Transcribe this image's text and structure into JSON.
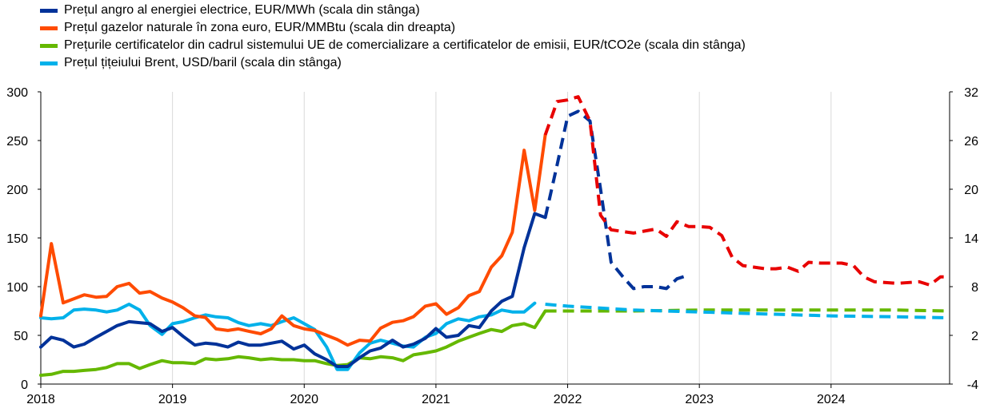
{
  "chart_data": {
    "type": "line",
    "x_axis": {
      "min": 2018.0,
      "max": 2024.9,
      "tick_labels": [
        "2018",
        "2019",
        "2020",
        "2021",
        "2022",
        "2023",
        "2024"
      ],
      "tick_values": [
        2018,
        2019,
        2020,
        2021,
        2022,
        2023,
        2024
      ]
    },
    "y_left": {
      "min": 0,
      "max": 300,
      "tick_labels": [
        "0",
        "50",
        "100",
        "150",
        "200",
        "250",
        "300"
      ],
      "tick_values": [
        0,
        50,
        100,
        150,
        200,
        250,
        300
      ]
    },
    "y_right": {
      "min": -4,
      "max": 32,
      "tick_labels": [
        "-4",
        "2",
        "8",
        "14",
        "20",
        "26",
        "32"
      ],
      "tick_values": [
        -4,
        2,
        8,
        14,
        20,
        26,
        32
      ]
    },
    "grid": "vertical",
    "legend_position": "top-left",
    "series": [
      {
        "name": "Prețul angro al energiei electrice, EUR/MWh (scala din stânga)",
        "color": "#003299",
        "axis": "left",
        "points": [
          [
            2018.0,
            38
          ],
          [
            2018.08,
            48
          ],
          [
            2018.17,
            45
          ],
          [
            2018.25,
            38
          ],
          [
            2018.33,
            41
          ],
          [
            2018.42,
            48
          ],
          [
            2018.5,
            54
          ],
          [
            2018.58,
            60
          ],
          [
            2018.67,
            64
          ],
          [
            2018.75,
            63
          ],
          [
            2018.83,
            62
          ],
          [
            2018.92,
            54
          ],
          [
            2019.0,
            58
          ],
          [
            2019.08,
            49
          ],
          [
            2019.17,
            40
          ],
          [
            2019.25,
            42
          ],
          [
            2019.33,
            41
          ],
          [
            2019.42,
            38
          ],
          [
            2019.5,
            43
          ],
          [
            2019.58,
            40
          ],
          [
            2019.67,
            40
          ],
          [
            2019.75,
            42
          ],
          [
            2019.83,
            44
          ],
          [
            2019.92,
            36
          ],
          [
            2020.0,
            40
          ],
          [
            2020.08,
            31
          ],
          [
            2020.17,
            25
          ],
          [
            2020.25,
            18
          ],
          [
            2020.33,
            18
          ],
          [
            2020.42,
            27
          ],
          [
            2020.5,
            34
          ],
          [
            2020.58,
            37
          ],
          [
            2020.67,
            45
          ],
          [
            2020.75,
            38
          ],
          [
            2020.83,
            41
          ],
          [
            2020.92,
            47
          ],
          [
            2021.0,
            57
          ],
          [
            2021.08,
            48
          ],
          [
            2021.17,
            50
          ],
          [
            2021.25,
            60
          ],
          [
            2021.33,
            58
          ],
          [
            2021.42,
            75
          ],
          [
            2021.5,
            85
          ],
          [
            2021.58,
            90
          ],
          [
            2021.67,
            140
          ],
          [
            2021.75,
            175
          ],
          [
            2021.83,
            171
          ]
        ],
        "forecast_points": [
          [
            2021.83,
            171
          ],
          [
            2021.92,
            225
          ],
          [
            2022.0,
            275
          ],
          [
            2022.08,
            280
          ],
          [
            2022.17,
            270
          ],
          [
            2022.25,
            200
          ],
          [
            2022.33,
            125
          ],
          [
            2022.42,
            110
          ],
          [
            2022.5,
            98
          ],
          [
            2022.58,
            100
          ],
          [
            2022.67,
            100
          ],
          [
            2022.75,
            98
          ],
          [
            2022.83,
            108
          ],
          [
            2022.92,
            112
          ]
        ]
      },
      {
        "name": "Prețul gazelor naturale în zona euro, EUR/MMBtu (scala din dreapta)",
        "color": "#ff4b00",
        "forecast_color": "#e80000",
        "axis": "right",
        "points": [
          [
            2018.0,
            4.4
          ],
          [
            2018.08,
            13.3
          ],
          [
            2018.17,
            6.0
          ],
          [
            2018.25,
            6.5
          ],
          [
            2018.33,
            7.0
          ],
          [
            2018.42,
            6.7
          ],
          [
            2018.5,
            6.8
          ],
          [
            2018.58,
            8.0
          ],
          [
            2018.67,
            8.4
          ],
          [
            2018.75,
            7.2
          ],
          [
            2018.83,
            7.4
          ],
          [
            2018.92,
            6.6
          ],
          [
            2019.0,
            6.1
          ],
          [
            2019.08,
            5.4
          ],
          [
            2019.17,
            4.4
          ],
          [
            2019.25,
            4.2
          ],
          [
            2019.33,
            2.8
          ],
          [
            2019.42,
            2.6
          ],
          [
            2019.5,
            2.8
          ],
          [
            2019.58,
            2.5
          ],
          [
            2019.67,
            2.2
          ],
          [
            2019.75,
            2.8
          ],
          [
            2019.83,
            4.4
          ],
          [
            2019.92,
            3.2
          ],
          [
            2020.0,
            2.8
          ],
          [
            2020.08,
            2.6
          ],
          [
            2020.17,
            2.0
          ],
          [
            2020.25,
            1.5
          ],
          [
            2020.33,
            0.8
          ],
          [
            2020.42,
            1.4
          ],
          [
            2020.5,
            1.3
          ],
          [
            2020.58,
            2.9
          ],
          [
            2020.67,
            3.6
          ],
          [
            2020.75,
            3.8
          ],
          [
            2020.83,
            4.3
          ],
          [
            2020.92,
            5.6
          ],
          [
            2021.0,
            5.9
          ],
          [
            2021.08,
            4.6
          ],
          [
            2021.17,
            5.4
          ],
          [
            2021.25,
            6.9
          ],
          [
            2021.33,
            7.4
          ],
          [
            2021.42,
            10.4
          ],
          [
            2021.5,
            11.8
          ],
          [
            2021.58,
            14.7
          ],
          [
            2021.67,
            24.8
          ],
          [
            2021.75,
            17.4
          ],
          [
            2021.83,
            26.7
          ]
        ],
        "forecast_points": [
          [
            2021.83,
            26.7
          ],
          [
            2021.92,
            30.8
          ],
          [
            2022.0,
            31.0
          ],
          [
            2022.08,
            31.4
          ],
          [
            2022.17,
            28.4
          ],
          [
            2022.25,
            16.8
          ],
          [
            2022.33,
            15.0
          ],
          [
            2022.5,
            14.6
          ],
          [
            2022.67,
            15.1
          ],
          [
            2022.75,
            14.2
          ],
          [
            2022.83,
            16.0
          ],
          [
            2022.92,
            15.4
          ],
          [
            2023.0,
            15.4
          ],
          [
            2023.08,
            15.3
          ],
          [
            2023.17,
            14.3
          ],
          [
            2023.25,
            11.6
          ],
          [
            2023.33,
            10.6
          ],
          [
            2023.5,
            10.2
          ],
          [
            2023.58,
            10.2
          ],
          [
            2023.67,
            10.4
          ],
          [
            2023.75,
            9.9
          ],
          [
            2023.83,
            11.0
          ],
          [
            2023.92,
            10.9
          ],
          [
            2024.0,
            10.9
          ],
          [
            2024.08,
            10.9
          ],
          [
            2024.17,
            10.6
          ],
          [
            2024.25,
            9.2
          ],
          [
            2024.33,
            8.6
          ],
          [
            2024.5,
            8.4
          ],
          [
            2024.67,
            8.6
          ],
          [
            2024.75,
            8.2
          ],
          [
            2024.83,
            9.2
          ],
          [
            2024.9,
            9.2
          ]
        ]
      },
      {
        "name": "Prețurile certificatelor din cadrul sistemului UE de comercializare a certificatelor de emisii, EUR/tCO2e (scala din stânga)",
        "color": "#65b800",
        "axis": "left",
        "points": [
          [
            2018.0,
            9
          ],
          [
            2018.08,
            10
          ],
          [
            2018.17,
            13
          ],
          [
            2018.25,
            13
          ],
          [
            2018.33,
            14
          ],
          [
            2018.42,
            15
          ],
          [
            2018.5,
            17
          ],
          [
            2018.58,
            21
          ],
          [
            2018.67,
            21
          ],
          [
            2018.75,
            16
          ],
          [
            2018.83,
            20
          ],
          [
            2018.92,
            24
          ],
          [
            2019.0,
            22
          ],
          [
            2019.08,
            22
          ],
          [
            2019.17,
            21
          ],
          [
            2019.25,
            26
          ],
          [
            2019.33,
            25
          ],
          [
            2019.42,
            26
          ],
          [
            2019.5,
            28
          ],
          [
            2019.58,
            27
          ],
          [
            2019.67,
            25
          ],
          [
            2019.75,
            26
          ],
          [
            2019.83,
            25
          ],
          [
            2019.92,
            25
          ],
          [
            2020.0,
            24
          ],
          [
            2020.08,
            24
          ],
          [
            2020.17,
            21
          ],
          [
            2020.25,
            19
          ],
          [
            2020.33,
            20
          ],
          [
            2020.42,
            27
          ],
          [
            2020.5,
            26
          ],
          [
            2020.58,
            28
          ],
          [
            2020.67,
            27
          ],
          [
            2020.75,
            24
          ],
          [
            2020.83,
            30
          ],
          [
            2020.92,
            32
          ],
          [
            2021.0,
            34
          ],
          [
            2021.08,
            38
          ],
          [
            2021.17,
            44
          ],
          [
            2021.25,
            48
          ],
          [
            2021.33,
            52
          ],
          [
            2021.42,
            56
          ],
          [
            2021.5,
            54
          ],
          [
            2021.58,
            60
          ],
          [
            2021.67,
            62
          ],
          [
            2021.75,
            58
          ],
          [
            2021.83,
            75
          ]
        ],
        "forecast_points": [
          [
            2021.83,
            75
          ],
          [
            2022.5,
            75
          ],
          [
            2023.0,
            76
          ],
          [
            2023.5,
            76
          ],
          [
            2024.0,
            76
          ],
          [
            2024.5,
            76
          ],
          [
            2024.9,
            75
          ]
        ]
      },
      {
        "name": "Prețul țițeiului Brent, USD/baril (scala din stânga)",
        "color": "#00b1ea",
        "axis": "left",
        "points": [
          [
            2018.0,
            68
          ],
          [
            2018.08,
            67
          ],
          [
            2018.17,
            68
          ],
          [
            2018.25,
            76
          ],
          [
            2018.33,
            77
          ],
          [
            2018.42,
            76
          ],
          [
            2018.5,
            74
          ],
          [
            2018.58,
            76
          ],
          [
            2018.67,
            82
          ],
          [
            2018.75,
            76
          ],
          [
            2018.83,
            60
          ],
          [
            2018.92,
            51
          ],
          [
            2019.0,
            62
          ],
          [
            2019.08,
            64
          ],
          [
            2019.17,
            68
          ],
          [
            2019.25,
            71
          ],
          [
            2019.33,
            69
          ],
          [
            2019.42,
            68
          ],
          [
            2019.5,
            63
          ],
          [
            2019.58,
            60
          ],
          [
            2019.67,
            62
          ],
          [
            2019.75,
            60
          ],
          [
            2019.83,
            64
          ],
          [
            2019.92,
            68
          ],
          [
            2020.0,
            62
          ],
          [
            2020.08,
            56
          ],
          [
            2020.17,
            38
          ],
          [
            2020.25,
            15
          ],
          [
            2020.33,
            15
          ],
          [
            2020.42,
            32
          ],
          [
            2020.5,
            42
          ],
          [
            2020.58,
            45
          ],
          [
            2020.67,
            42
          ],
          [
            2020.75,
            39
          ],
          [
            2020.83,
            38
          ],
          [
            2020.92,
            48
          ],
          [
            2021.0,
            52
          ],
          [
            2021.08,
            62
          ],
          [
            2021.17,
            67
          ],
          [
            2021.25,
            65
          ],
          [
            2021.33,
            69
          ],
          [
            2021.42,
            71
          ],
          [
            2021.5,
            76
          ],
          [
            2021.58,
            74
          ],
          [
            2021.67,
            74
          ],
          [
            2021.75,
            83
          ]
        ],
        "forecast_points": [
          [
            2021.83,
            82
          ],
          [
            2022.0,
            80
          ],
          [
            2022.5,
            76
          ],
          [
            2023.0,
            74
          ],
          [
            2023.5,
            72
          ],
          [
            2024.0,
            70
          ],
          [
            2024.5,
            69
          ],
          [
            2024.9,
            68
          ]
        ]
      }
    ]
  }
}
